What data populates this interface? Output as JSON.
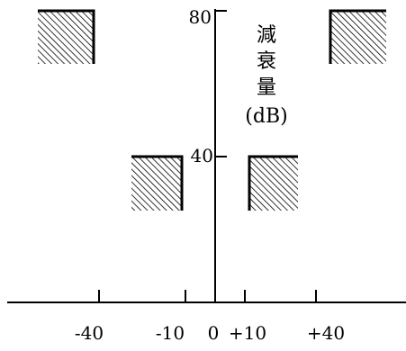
{
  "diagram": {
    "y_axis": {
      "ticks": [
        "80",
        "40"
      ],
      "label_chars": [
        "減",
        "衰",
        "量"
      ],
      "unit": "(dB)"
    },
    "x_axis": {
      "ticks": [
        "-40",
        "-10",
        "0",
        "+10",
        "+40"
      ]
    },
    "regions": [
      {
        "name": "outer-left",
        "from": -70,
        "to": -40,
        "level": 80
      },
      {
        "name": "inner-left",
        "from": -25,
        "to": -10,
        "level": 40
      },
      {
        "name": "inner-right",
        "from": 10,
        "to": 25,
        "level": 40
      },
      {
        "name": "outer-right",
        "from": 40,
        "to": 70,
        "level": 80
      }
    ],
    "colors": {
      "ink": "#000000",
      "background": "#ffffff"
    }
  }
}
